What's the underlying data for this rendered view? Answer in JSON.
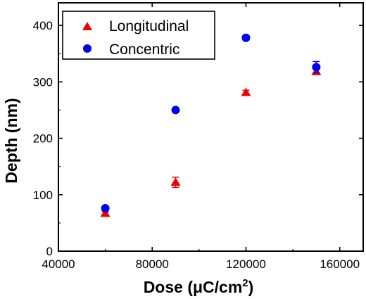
{
  "chart_data": {
    "type": "scatter",
    "title": "",
    "xlabel": "Dose (μC/cm²)",
    "xlabel_parts": {
      "main": "Dose (μC/cm",
      "sup": "2",
      "close": ")"
    },
    "ylabel": "Depth (nm)",
    "xlim": [
      40000,
      170000
    ],
    "ylim": [
      0,
      440
    ],
    "xticks": [
      40000,
      80000,
      120000,
      160000
    ],
    "xtick_labels": [
      "40000",
      "80000",
      "120000",
      "160000"
    ],
    "yticks": [
      0,
      100,
      200,
      300,
      400
    ],
    "ytick_labels": [
      "0",
      "100",
      "200",
      "300",
      "400"
    ],
    "grid": false,
    "legend_placement": "top-left",
    "series": [
      {
        "name": "Longitudinal",
        "marker": "triangle",
        "color": "#ee0000",
        "x": [
          60000,
          90000,
          120000,
          150000
        ],
        "y": [
          67,
          122,
          281,
          318
        ],
        "yerr": [
          3,
          9,
          4,
          5
        ]
      },
      {
        "name": "Concentric",
        "marker": "circle",
        "color": "#0000ee",
        "x": [
          60000,
          90000,
          120000,
          150000
        ],
        "y": [
          76,
          250,
          378,
          326
        ],
        "yerr": [
          3,
          3,
          4,
          10
        ]
      }
    ]
  }
}
